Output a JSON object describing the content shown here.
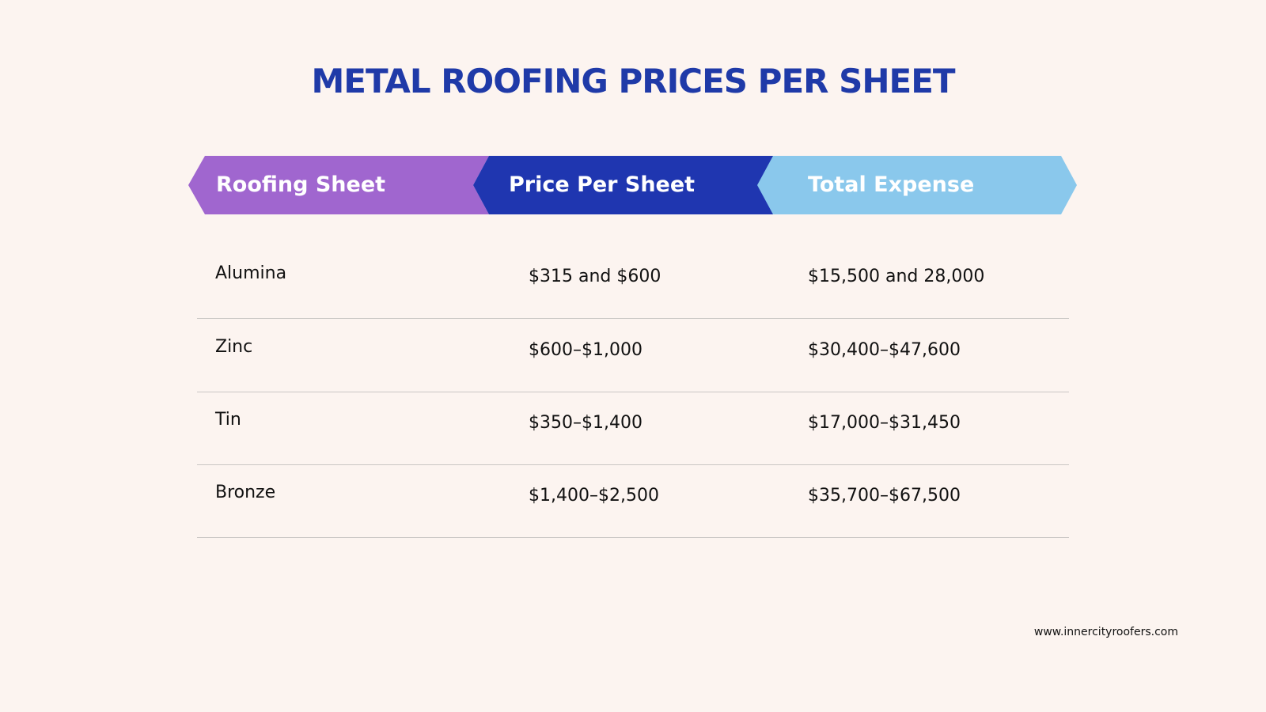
{
  "title": "METAL ROOFING PRICES PER SHEET",
  "headers": [
    "Roofing Sheet",
    "Price Per Sheet",
    "Total Expense"
  ],
  "header_colors": [
    "#a066cf",
    "#1f36b0",
    "#8ac8ec"
  ],
  "rows": [
    [
      "Alumina",
      "$315 and $600",
      "$15,500 and 28,000"
    ],
    [
      "Zinc",
      "$600–$1,000",
      "$30,400–$47,600"
    ],
    [
      "Tin",
      "$350–$1,400",
      "$17,000–$31,450"
    ],
    [
      "Bronze",
      "$1,400–$2,500",
      "$35,700–$67,500"
    ]
  ],
  "footer": {
    "url": "www.innercityroofers.com"
  }
}
